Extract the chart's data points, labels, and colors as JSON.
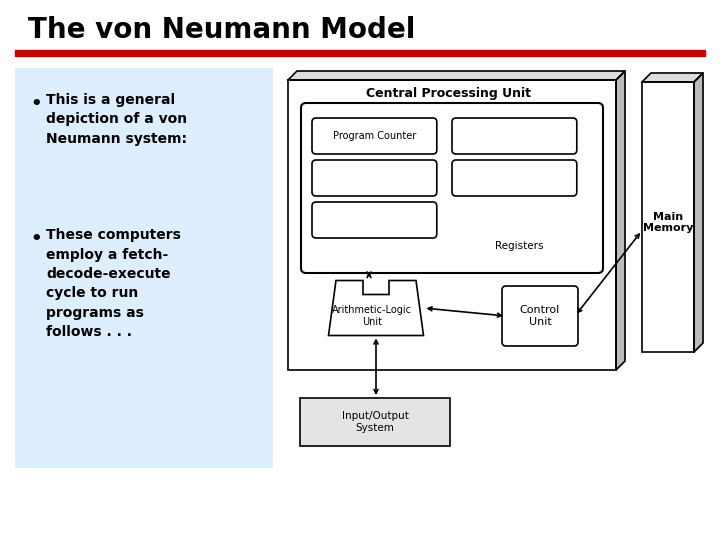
{
  "title": "The von Neumann Model",
  "title_color": "#000000",
  "title_fontsize": 20,
  "red_line_color": "#cc0000",
  "background_color": "#ffffff",
  "bullet_bg_color": "#ddeeff",
  "bullet1": "This is a general\ndepiction of a von\nNeumann system:",
  "bullet2": "These computers\nemploy a fetch-\ndecode-execute\ncycle to run\nprograms as\nfollows . . .",
  "cpu_label": "Central Processing Unit",
  "reg_label": "Registers",
  "pc_label": "Program Counter",
  "alu_label": "Arithmetic-Logic\nUnit",
  "cu_label": "Control\nUnit",
  "io_label": "Input/Output\nSystem",
  "mm_label": "Main\nMemory",
  "lw": 1.2,
  "diagram_scale": 1.0
}
